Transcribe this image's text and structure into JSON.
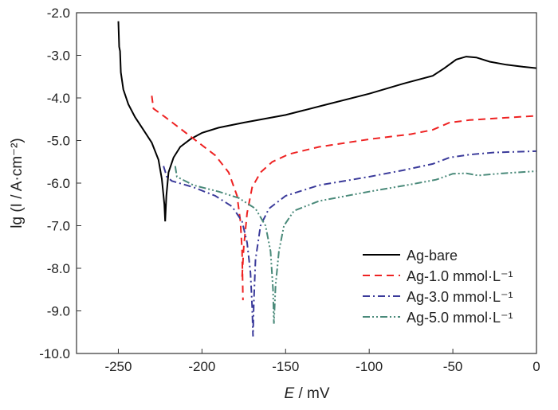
{
  "chart_data": {
    "type": "line",
    "title": "",
    "xlabel_italic": "E",
    "xlabel_rest": " / mV",
    "ylabel": "lg (I / A·cm⁻²)",
    "xlim": [
      -275,
      0
    ],
    "ylim": [
      -10.0,
      -2.0
    ],
    "xticks": [
      -250,
      -200,
      -150,
      -100,
      -50,
      0
    ],
    "xtick_labels": [
      "-250",
      "-200",
      "-150",
      "-100",
      "-50",
      "0"
    ],
    "yticks": [
      -2,
      -3,
      -4,
      -5,
      -6,
      -7,
      -8,
      -9,
      -10
    ],
    "ytick_labels": [
      "-2.0",
      "-3.0",
      "-4.0",
      "-5.0",
      "-6.0",
      "-7.0",
      "-8.0",
      "-9.0",
      "-10.0"
    ],
    "grid": false,
    "legend_position": "bottom-right",
    "series": [
      {
        "name": "Ag-bare",
        "color": "#000000",
        "dash": "",
        "points": [
          [
            -250,
            -2.2
          ],
          [
            -249.5,
            -2.8
          ],
          [
            -249,
            -2.9
          ],
          [
            -248.5,
            -3.4
          ],
          [
            -247,
            -3.8
          ],
          [
            -244,
            -4.15
          ],
          [
            -240,
            -4.45
          ],
          [
            -235,
            -4.75
          ],
          [
            -230,
            -5.05
          ],
          [
            -226,
            -5.45
          ],
          [
            -224,
            -5.9
          ],
          [
            -222.5,
            -6.5
          ],
          [
            -222,
            -6.9
          ],
          [
            -221.3,
            -6.3
          ],
          [
            -220,
            -5.75
          ],
          [
            -217,
            -5.4
          ],
          [
            -213,
            -5.15
          ],
          [
            -207,
            -4.97
          ],
          [
            -200,
            -4.82
          ],
          [
            -190,
            -4.7
          ],
          [
            -175,
            -4.58
          ],
          [
            -150,
            -4.4
          ],
          [
            -125,
            -4.15
          ],
          [
            -100,
            -3.9
          ],
          [
            -80,
            -3.67
          ],
          [
            -62,
            -3.48
          ],
          [
            -55,
            -3.3
          ],
          [
            -48,
            -3.1
          ],
          [
            -42,
            -3.03
          ],
          [
            -36,
            -3.05
          ],
          [
            -28,
            -3.15
          ],
          [
            -18,
            -3.22
          ],
          [
            -8,
            -3.27
          ],
          [
            0,
            -3.3
          ]
        ]
      },
      {
        "name": "Ag-1.0 mmol·L⁻¹",
        "color": "#ee2222",
        "dash": "9,6",
        "points": [
          [
            -230,
            -3.95
          ],
          [
            -229,
            -4.25
          ],
          [
            -222,
            -4.45
          ],
          [
            -212,
            -4.75
          ],
          [
            -202,
            -5.05
          ],
          [
            -192,
            -5.35
          ],
          [
            -184,
            -5.75
          ],
          [
            -179,
            -6.3
          ],
          [
            -177,
            -6.9
          ],
          [
            -176,
            -7.6
          ],
          [
            -175.5,
            -8.75
          ],
          null,
          [
            -176,
            -8.2
          ],
          [
            -175,
            -7.5
          ],
          [
            -173,
            -6.7
          ],
          [
            -170,
            -6.1
          ],
          [
            -165,
            -5.75
          ],
          [
            -158,
            -5.5
          ],
          [
            -148,
            -5.32
          ],
          [
            -130,
            -5.15
          ],
          [
            -100,
            -4.97
          ],
          [
            -75,
            -4.85
          ],
          [
            -62,
            -4.75
          ],
          [
            -52,
            -4.58
          ],
          [
            -40,
            -4.52
          ],
          [
            -20,
            -4.47
          ],
          [
            0,
            -4.42
          ]
        ]
      },
      {
        "name": "Ag-3.0 mmol·L⁻¹",
        "color": "#3a3a9a",
        "dash": "9,4,2,4",
        "points": [
          [
            -223,
            -5.6
          ],
          [
            -221,
            -5.85
          ],
          [
            -218,
            -5.95
          ],
          [
            -205,
            -6.1
          ],
          [
            -192,
            -6.3
          ],
          [
            -182,
            -6.55
          ],
          [
            -176,
            -6.9
          ],
          [
            -173,
            -7.4
          ],
          [
            -171,
            -8.1
          ],
          [
            -170,
            -8.9
          ],
          [
            -169.5,
            -9.6
          ],
          [
            -169,
            -8.8
          ],
          [
            -168,
            -7.8
          ],
          [
            -165,
            -7.0
          ],
          [
            -160,
            -6.6
          ],
          [
            -150,
            -6.3
          ],
          [
            -130,
            -6.05
          ],
          [
            -100,
            -5.85
          ],
          [
            -80,
            -5.7
          ],
          [
            -62,
            -5.55
          ],
          [
            -52,
            -5.4
          ],
          [
            -40,
            -5.33
          ],
          [
            -25,
            -5.28
          ],
          [
            0,
            -5.25
          ]
        ]
      },
      {
        "name": "Ag-5.0 mmol·L⁻¹",
        "color": "#4a8a7a",
        "dash": "9,3,2,3,2,3",
        "points": [
          [
            -216,
            -5.6
          ],
          [
            -215,
            -5.85
          ],
          [
            -205,
            -6.05
          ],
          [
            -190,
            -6.2
          ],
          [
            -178,
            -6.35
          ],
          [
            -168,
            -6.6
          ],
          [
            -162,
            -7.0
          ],
          [
            -159,
            -7.6
          ],
          [
            -157.5,
            -8.5
          ],
          [
            -157,
            -9.3
          ],
          [
            -156,
            -8.4
          ],
          [
            -154,
            -7.6
          ],
          [
            -151,
            -7.0
          ],
          [
            -145,
            -6.65
          ],
          [
            -130,
            -6.42
          ],
          [
            -100,
            -6.2
          ],
          [
            -75,
            -6.03
          ],
          [
            -60,
            -5.92
          ],
          [
            -50,
            -5.78
          ],
          [
            -42,
            -5.77
          ],
          [
            -35,
            -5.82
          ],
          [
            -20,
            -5.77
          ],
          [
            0,
            -5.72
          ]
        ]
      }
    ]
  }
}
